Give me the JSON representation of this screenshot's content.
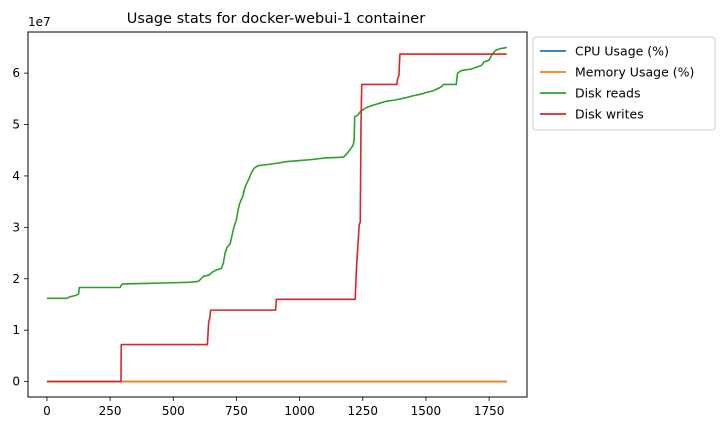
{
  "chart_data": {
    "type": "line",
    "title": "Usage stats for docker-webui-1 container",
    "xlabel": "",
    "ylabel": "",
    "y_offset_text": "1e7",
    "xlim": [
      -75,
      1900
    ],
    "ylim": [
      -3000000,
      68000000
    ],
    "x_ticks": [
      0,
      250,
      500,
      750,
      1000,
      1250,
      1500,
      1750
    ],
    "y_ticks": [
      0,
      10000000,
      20000000,
      30000000,
      40000000,
      50000000,
      60000000
    ],
    "y_tick_labels": [
      "0",
      "1",
      "2",
      "3",
      "4",
      "5",
      "6"
    ],
    "grid": false,
    "legend_position": "outside-upper-right",
    "series": [
      {
        "name": "CPU Usage (%)",
        "color": "#1f77b4",
        "points": [
          [
            0,
            0
          ],
          [
            1820,
            0
          ]
        ]
      },
      {
        "name": "Memory Usage (%)",
        "color": "#ff7f0e",
        "points": [
          [
            0,
            0
          ],
          [
            1820,
            0
          ]
        ]
      },
      {
        "name": "Disk reads",
        "color": "#2ca02c",
        "points": [
          [
            0,
            16200000
          ],
          [
            80,
            16200000
          ],
          [
            90,
            16500000
          ],
          [
            110,
            16700000
          ],
          [
            125,
            17000000
          ],
          [
            128,
            18300000
          ],
          [
            290,
            18300000
          ],
          [
            295,
            18800000
          ],
          [
            300,
            19000000
          ],
          [
            390,
            19100000
          ],
          [
            480,
            19200000
          ],
          [
            560,
            19300000
          ],
          [
            600,
            19500000
          ],
          [
            620,
            20500000
          ],
          [
            640,
            20700000
          ],
          [
            655,
            21300000
          ],
          [
            670,
            21700000
          ],
          [
            690,
            22000000
          ],
          [
            698,
            23000000
          ],
          [
            705,
            25000000
          ],
          [
            712,
            26000000
          ],
          [
            725,
            26800000
          ],
          [
            735,
            29000000
          ],
          [
            740,
            30000000
          ],
          [
            750,
            31500000
          ],
          [
            755,
            33000000
          ],
          [
            762,
            34500000
          ],
          [
            770,
            35500000
          ],
          [
            775,
            36000000
          ],
          [
            782,
            37500000
          ],
          [
            790,
            38500000
          ],
          [
            800,
            39500000
          ],
          [
            808,
            40500000
          ],
          [
            820,
            41500000
          ],
          [
            835,
            42000000
          ],
          [
            870,
            42200000
          ],
          [
            900,
            42400000
          ],
          [
            950,
            42800000
          ],
          [
            1000,
            43000000
          ],
          [
            1050,
            43200000
          ],
          [
            1100,
            43500000
          ],
          [
            1150,
            43600000
          ],
          [
            1175,
            43700000
          ],
          [
            1190,
            44500000
          ],
          [
            1205,
            45500000
          ],
          [
            1212,
            46000000
          ],
          [
            1216,
            47000000
          ],
          [
            1218,
            51500000
          ],
          [
            1230,
            51800000
          ],
          [
            1240,
            52500000
          ],
          [
            1260,
            53200000
          ],
          [
            1280,
            53600000
          ],
          [
            1300,
            53900000
          ],
          [
            1320,
            54200000
          ],
          [
            1340,
            54500000
          ],
          [
            1380,
            54800000
          ],
          [
            1420,
            55200000
          ],
          [
            1450,
            55600000
          ],
          [
            1480,
            55900000
          ],
          [
            1500,
            56200000
          ],
          [
            1530,
            56600000
          ],
          [
            1560,
            57300000
          ],
          [
            1570,
            57800000
          ],
          [
            1620,
            57800000
          ],
          [
            1625,
            60000000
          ],
          [
            1640,
            60500000
          ],
          [
            1680,
            60800000
          ],
          [
            1720,
            61500000
          ],
          [
            1730,
            62200000
          ],
          [
            1750,
            62500000
          ],
          [
            1760,
            63500000
          ],
          [
            1775,
            64400000
          ],
          [
            1790,
            64700000
          ],
          [
            1820,
            65000000
          ]
        ]
      },
      {
        "name": "Disk writes",
        "color": "#d62728",
        "points": [
          [
            0,
            0
          ],
          [
            293,
            0
          ],
          [
            294,
            7200000
          ],
          [
            635,
            7200000
          ],
          [
            640,
            11500000
          ],
          [
            645,
            12500000
          ],
          [
            648,
            13900000
          ],
          [
            905,
            13900000
          ],
          [
            908,
            16000000
          ],
          [
            1220,
            16000000
          ],
          [
            1225,
            22000000
          ],
          [
            1230,
            26000000
          ],
          [
            1236,
            30500000
          ],
          [
            1240,
            31000000
          ],
          [
            1243,
            50000000
          ],
          [
            1246,
            57800000
          ],
          [
            1385,
            57800000
          ],
          [
            1388,
            59000000
          ],
          [
            1393,
            59500000
          ],
          [
            1397,
            63700000
          ],
          [
            1820,
            63700000
          ]
        ]
      }
    ]
  }
}
